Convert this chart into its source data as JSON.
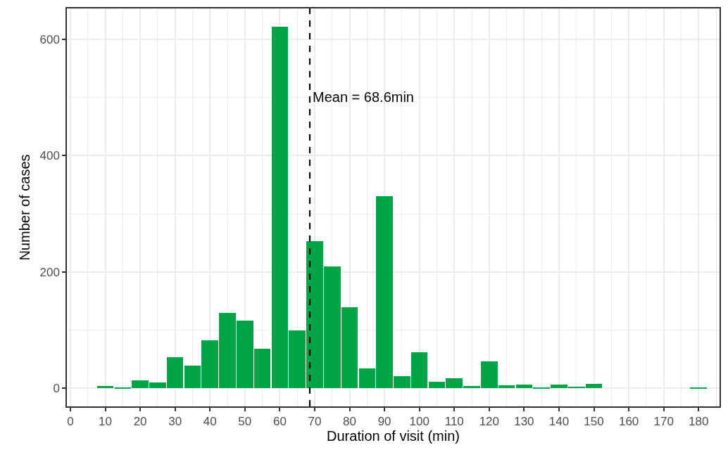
{
  "chart_data": {
    "type": "histogram",
    "xlabel": "Duration of visit (min)",
    "ylabel": "Number of cases",
    "bins": [
      7.5,
      12.5,
      17.5,
      22.5,
      27.5,
      32.5,
      37.5,
      42.5,
      47.5,
      52.5,
      57.5,
      62.5,
      67.5,
      72.5,
      77.5,
      82.5,
      87.5,
      92.5,
      97.5,
      102.5,
      107.5,
      112.5,
      117.5,
      122.5,
      127.5,
      132.5,
      137.5,
      142.5,
      147.5,
      152.5,
      157.5,
      162.5,
      167.5,
      172.5,
      177.5,
      182.5
    ],
    "values": [
      4,
      1,
      14,
      10,
      53,
      39,
      83,
      130,
      117,
      68,
      622,
      100,
      253,
      210,
      140,
      34,
      330,
      21,
      62,
      11,
      17,
      4,
      46,
      5,
      7,
      1,
      7,
      3,
      8,
      0,
      0,
      0,
      0,
      0,
      1
    ],
    "color": "#00a346",
    "xlim": [
      -1,
      186
    ],
    "xticks": [
      0,
      10,
      20,
      30,
      40,
      50,
      60,
      70,
      80,
      90,
      100,
      110,
      120,
      130,
      140,
      150,
      160,
      170,
      180
    ],
    "ylim": [
      -31,
      653
    ],
    "yticks": [
      0,
      200,
      400,
      600
    ],
    "grid": true,
    "ref_lines": [
      {
        "axis": "x",
        "value": 68.6,
        "label": "Mean = 68.6min",
        "color": "#000000",
        "line_style": "dashed"
      }
    ]
  }
}
